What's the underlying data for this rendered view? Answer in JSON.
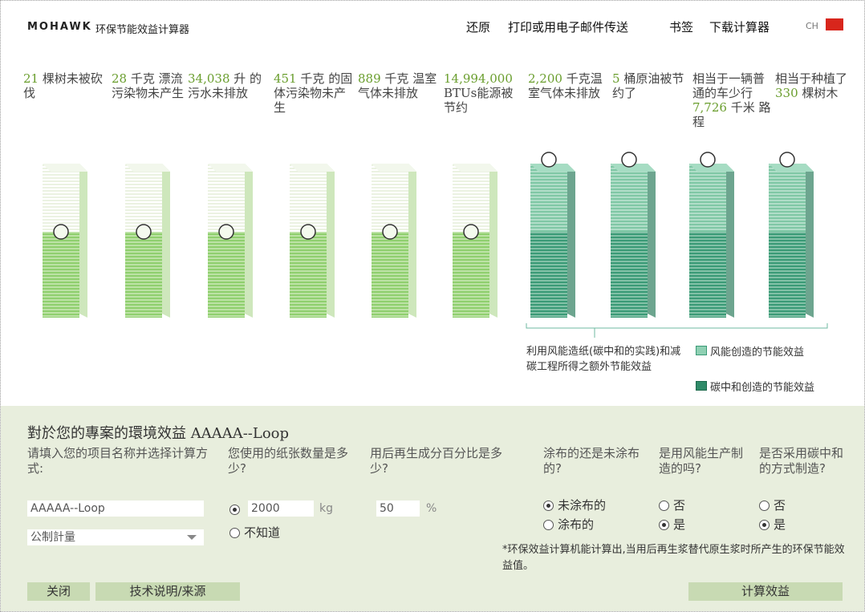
{
  "header": {
    "brand": "MOHAWK",
    "app_title": "环保节能效益计算器",
    "nav": [
      "还原",
      "打印或用电子邮件传送",
      "书签",
      "下载计算器"
    ],
    "language": "CH"
  },
  "metrics": [
    {
      "value": "21",
      "text": "棵树未被砍伐"
    },
    {
      "value": "28",
      "text": "千克 漂流污染物未产生"
    },
    {
      "value": "34,038",
      "text": "升 的污水未排放"
    },
    {
      "value": "451",
      "text": "千克 的固体污染物未产生"
    },
    {
      "value": "889",
      "text": "千克 温室气体未排放"
    },
    {
      "value": "14,994,000",
      "text": "BTUs能源被节约"
    },
    {
      "value": "2,200",
      "text": "千克温室气体未排放"
    },
    {
      "value": "5",
      "text": "桶原油被节约了"
    },
    {
      "prefix": "相当于一辆普通的车少行",
      "value": "7,726",
      "text": "千米 路程"
    },
    {
      "prefix": "相当于种植了",
      "value": "330",
      "text": "棵树木"
    }
  ],
  "legend": {
    "note": "利用风能造纸(碳中和的实践)和减碳工程所得之额外节能效益",
    "items": [
      "风能创造的节能效益",
      "碳中和创造的节能效益"
    ]
  },
  "form": {
    "title": "對於您的專案的環境效益 AAAAA--Loop",
    "questions": [
      "请填入您的项目名称并选择计算方式:",
      "您使用的纸张数量是多少?",
      "用后再生成分百分比是多少?",
      "涂布的还是未涂布的?",
      "是用风能生产制造的吗?",
      "是否采用碳中和的方式制造?"
    ],
    "project_name": "AAAAA--Loop",
    "measure": "公制計量",
    "paper_amount": "2000",
    "paper_unit": "kg",
    "unknown": "不知道",
    "recycled": "50",
    "recycled_unit": "%",
    "coating": [
      "未涂布的",
      "涂布的"
    ],
    "wind": [
      "否",
      "是"
    ],
    "carbon": [
      "否",
      "是"
    ],
    "footnote": "*环保效益计算机能计算出,当用后再生浆替代原生浆时所产生的环保节能效益值。",
    "buttons": [
      "关闭",
      "技术说明/来源",
      "计算效益"
    ]
  }
}
